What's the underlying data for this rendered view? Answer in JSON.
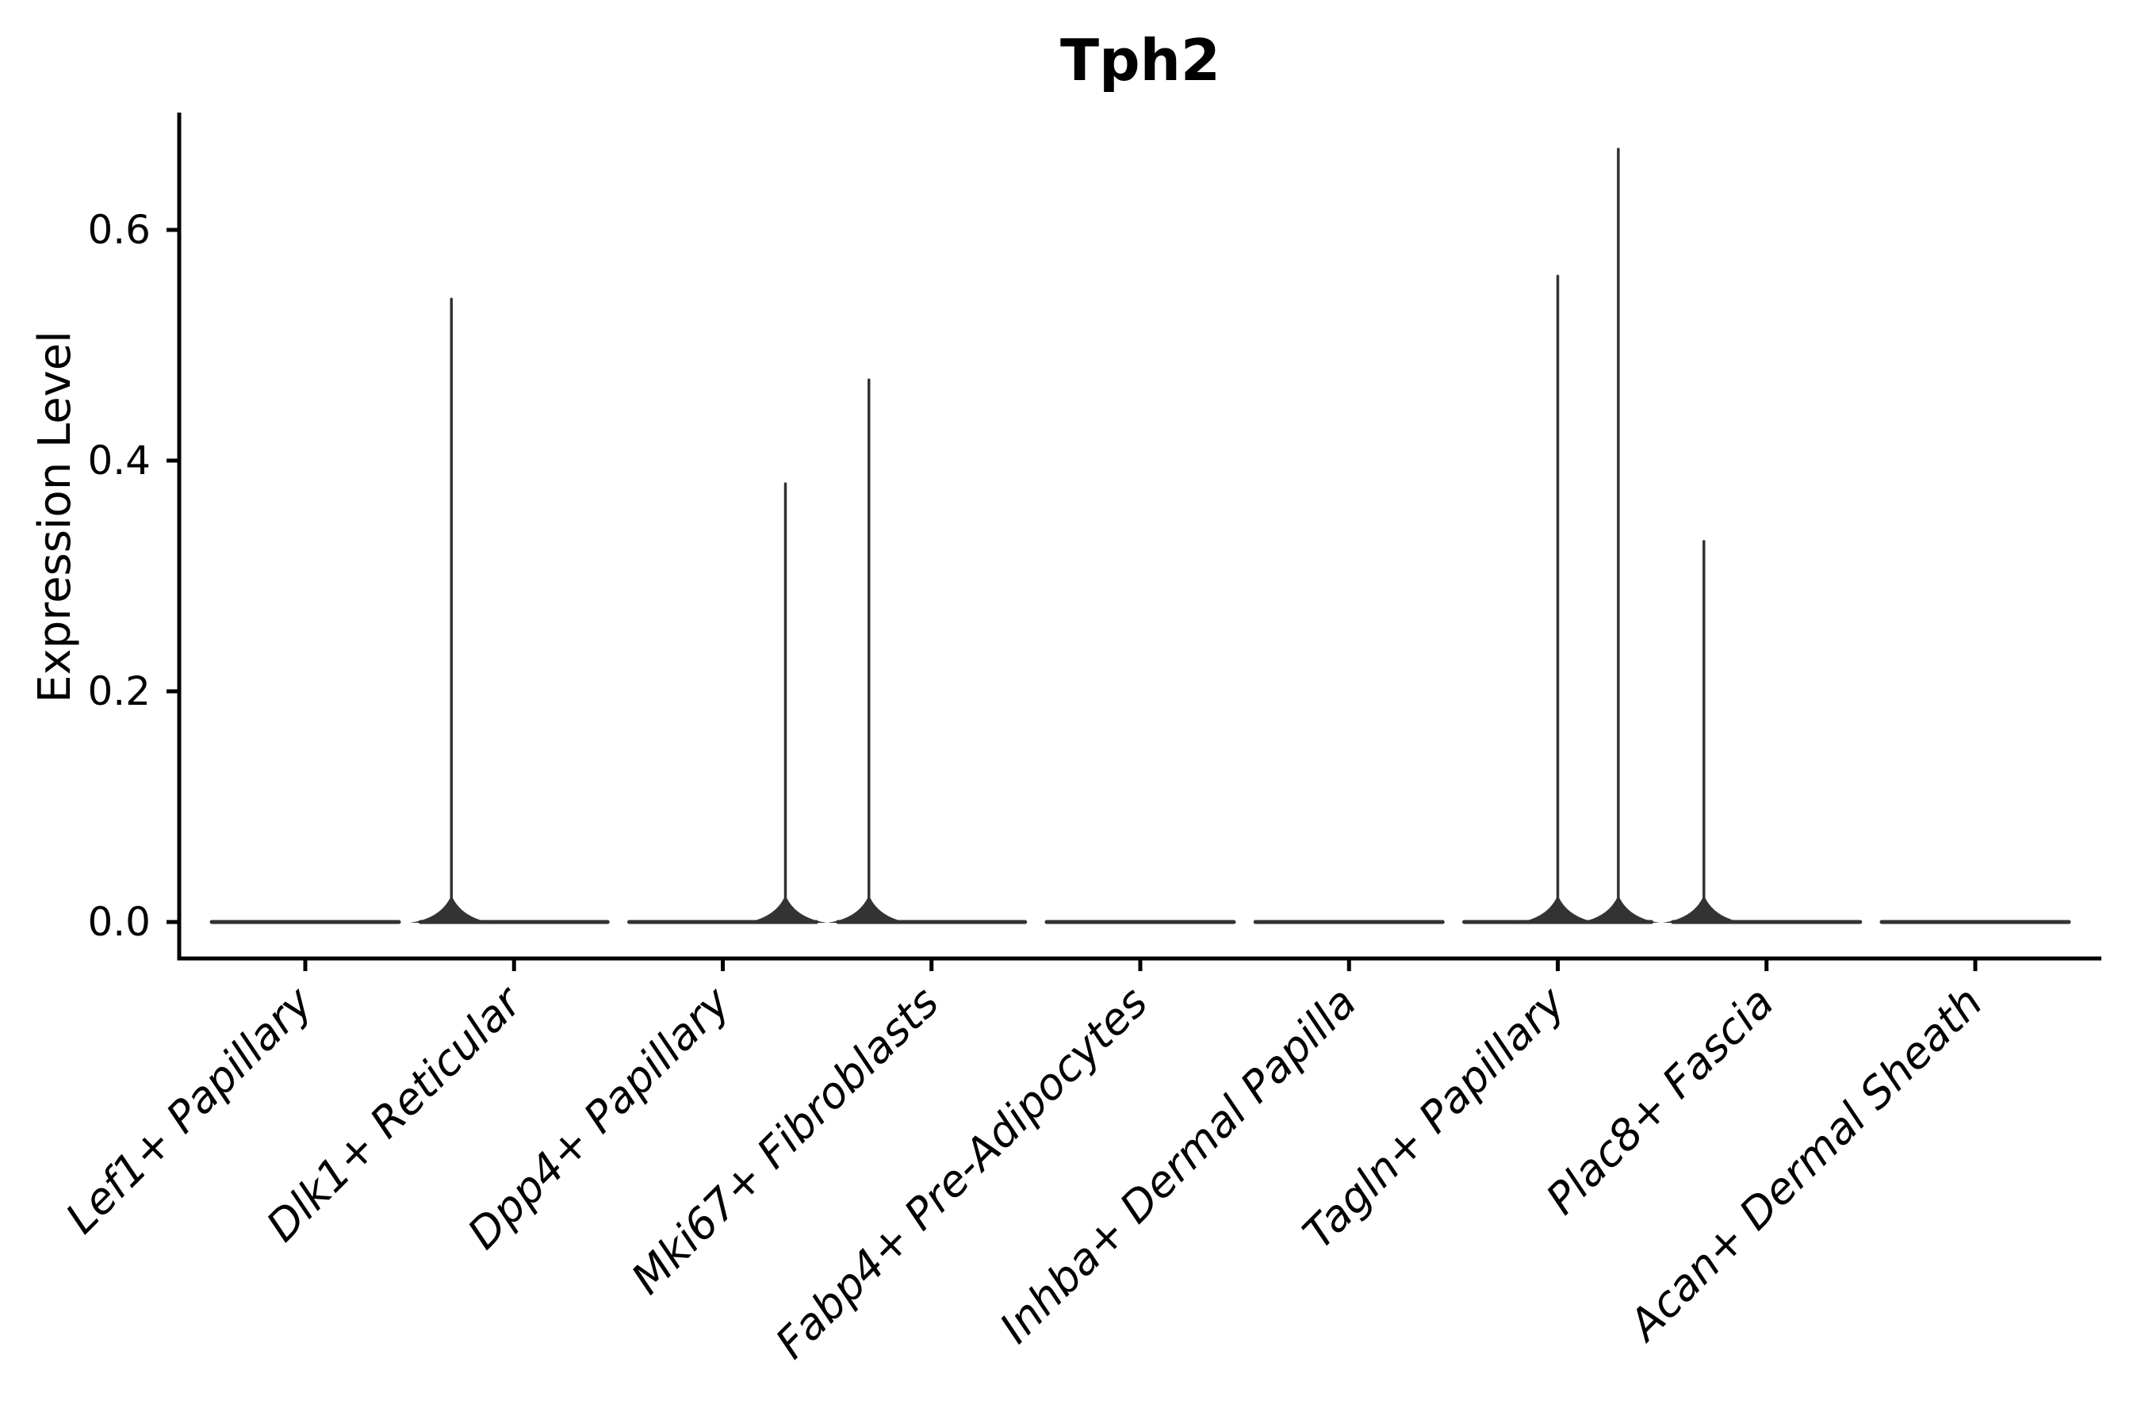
{
  "title": "Tph2",
  "y_axis": {
    "label": "Expression Level",
    "tick_labels": [
      "0.0",
      "0.2",
      "0.4",
      "0.6"
    ],
    "tick_values": [
      0.0,
      0.2,
      0.4,
      0.6
    ],
    "min": -0.03,
    "max": 0.7
  },
  "x_axis": {
    "categories": [
      "Lef1+ Papillary",
      "Dlk1+ Reticular",
      "Dpp4+ Papillary",
      "Mki67+ Fibroblasts",
      "Fabp4+ Pre-Adipocytes",
      "Inhba+ Dermal Papilla",
      "Tagln+ Papillary",
      "Plac8+ Fascia",
      "Acan+ Dermal Sheath"
    ]
  },
  "chart_data": {
    "type": "violin",
    "title": "Tph2",
    "xlabel": "",
    "ylabel": "Expression Level",
    "ylim": [
      -0.03,
      0.7
    ],
    "grid": false,
    "legend_position": "none",
    "categories": [
      "Lef1+ Papillary",
      "Dlk1+ Reticular",
      "Dpp4+ Papillary",
      "Mki67+ Fibroblasts",
      "Fabp4+ Pre-Adipocytes",
      "Inhba+ Dermal Papilla",
      "Tagln+ Papillary",
      "Plac8+ Fascia",
      "Acan+ Dermal Sheath"
    ],
    "series": [
      {
        "name": "Lef1+ Papillary",
        "baseline_value": 0.0,
        "spikes": []
      },
      {
        "name": "Dlk1+ Reticular",
        "baseline_value": 0.0,
        "spikes": [
          {
            "offset_frac": -0.3,
            "max_value": 0.54
          }
        ]
      },
      {
        "name": "Dpp4+ Papillary",
        "baseline_value": 0.0,
        "spikes": [
          {
            "offset_frac": 0.3,
            "max_value": 0.38
          }
        ]
      },
      {
        "name": "Mki67+ Fibroblasts",
        "baseline_value": 0.0,
        "spikes": [
          {
            "offset_frac": -0.3,
            "max_value": 0.47
          }
        ]
      },
      {
        "name": "Fabp4+ Pre-Adipocytes",
        "baseline_value": 0.0,
        "spikes": []
      },
      {
        "name": "Inhba+ Dermal Papilla",
        "baseline_value": 0.0,
        "spikes": []
      },
      {
        "name": "Tagln+ Papillary",
        "baseline_value": 0.0,
        "spikes": [
          {
            "offset_frac": 0.0,
            "max_value": 0.56
          },
          {
            "offset_frac": 0.29,
            "max_value": 0.67
          }
        ]
      },
      {
        "name": "Plac8+ Fascia",
        "baseline_value": 0.0,
        "spikes": [
          {
            "offset_frac": -0.3,
            "max_value": 0.33
          }
        ]
      },
      {
        "name": "Acan+ Dermal Sheath",
        "baseline_value": 0.0,
        "spikes": []
      }
    ]
  },
  "colors": {
    "background": "#ffffff",
    "violin": "#333333",
    "axis": "#000000",
    "text": "#000000"
  }
}
